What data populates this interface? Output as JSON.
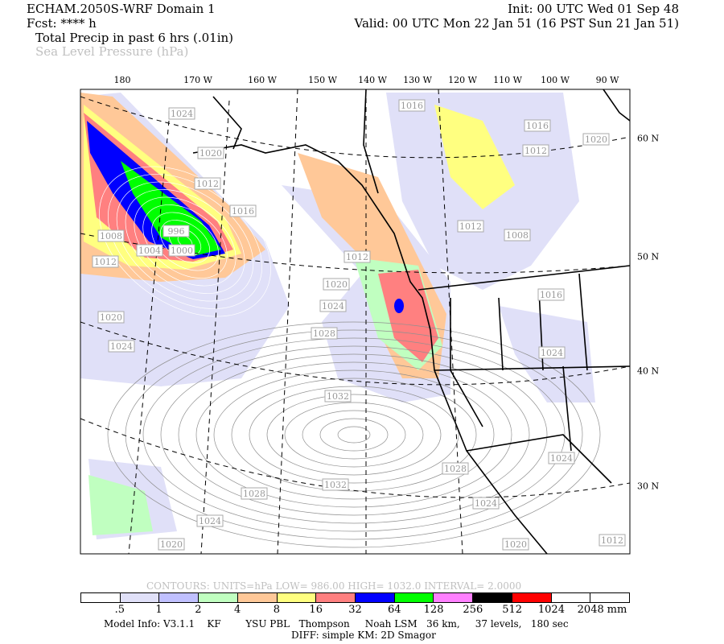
{
  "header": {
    "title": "ECHAM.2050S-WRF Domain 1",
    "init": "Init: 00 UTC Wed 01 Sep 48",
    "fcst": "Fcst: **** h",
    "valid": "Valid: 00 UTC Mon 22 Jan 51 (16 PST Sun 21 Jan 51)",
    "field1": "Total Precip in past 6 hrs (.01in)",
    "field2": "Sea Level Pressure (hPa)"
  },
  "map": {
    "lon_labels": [
      "180",
      "170 W",
      "160 W",
      "150 W",
      "140 W",
      "130 W",
      "120 W",
      "110 W",
      "100 W",
      "90 W"
    ],
    "lat_labels": [
      "60 N",
      "50 N",
      "40 N",
      "30 N"
    ],
    "pressure_labels": [
      "1024",
      "1020",
      "1016",
      "1012",
      "1008",
      "1012",
      "1004",
      "996",
      "1000",
      "1020",
      "1024",
      "1016",
      "1016",
      "1012",
      "1020",
      "1012",
      "1008",
      "1012",
      "1020",
      "1024",
      "1028",
      "1032",
      "1016",
      "1024",
      "1028",
      "1024",
      "1032",
      "1028",
      "1024",
      "1024",
      "1020",
      "1020",
      "1012"
    ],
    "contour_color": "#909090"
  },
  "legend": {
    "contours": "CONTOURS:  UNITS=hPa  LOW=  986.00      HIGH=  1032.0      INTERVAL=    2.0000",
    "colors": [
      "#ffffff",
      "#e0e0f8",
      "#c0c0ff",
      "#c0ffc0",
      "#ffc898",
      "#ffff80",
      "#ff8080",
      "#0000ff",
      "#00ff00",
      "#ff80ff",
      "#000000",
      "#ff0000",
      "#ffffff",
      "#ffffff"
    ],
    "labels": [
      ".5",
      "1",
      "2",
      "4",
      "8",
      "16",
      "32",
      "64",
      "128",
      "256",
      "512",
      "1024",
      "2048"
    ],
    "unit": "mm"
  },
  "footer": {
    "model_info": "Model Info: V3.1.1    KF        YSU PBL   Thompson     Noah LSM   36 km,     37 levels,   180 sec",
    "diff": "DIFF: simple KM: 2D Smagor"
  }
}
